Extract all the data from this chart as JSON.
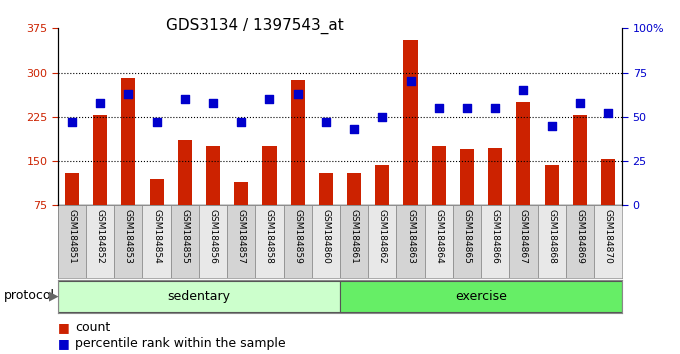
{
  "title": "GDS3134 / 1397543_at",
  "samples": [
    "GSM184851",
    "GSM184852",
    "GSM184853",
    "GSM184854",
    "GSM184855",
    "GSM184856",
    "GSM184857",
    "GSM184858",
    "GSM184859",
    "GSM184860",
    "GSM184861",
    "GSM184862",
    "GSM184863",
    "GSM184864",
    "GSM184865",
    "GSM184866",
    "GSM184867",
    "GSM184868",
    "GSM184869",
    "GSM184870"
  ],
  "bar_values": [
    130,
    228,
    290,
    120,
    185,
    175,
    115,
    175,
    288,
    130,
    130,
    143,
    355,
    175,
    170,
    173,
    250,
    143,
    228,
    153
  ],
  "pct_values": [
    47,
    58,
    63,
    47,
    60,
    58,
    47,
    60,
    63,
    47,
    43,
    50,
    70,
    55,
    55,
    55,
    65,
    45,
    58,
    52
  ],
  "groups": [
    {
      "label": "sedentary",
      "start": 0,
      "end": 10,
      "color": "#ccffcc"
    },
    {
      "label": "exercise",
      "start": 10,
      "end": 20,
      "color": "#66ee66"
    }
  ],
  "ylim_left": [
    75,
    375
  ],
  "ylim_right": [
    0,
    100
  ],
  "yticks_left": [
    75,
    150,
    225,
    300,
    375
  ],
  "yticks_right": [
    0,
    25,
    50,
    75,
    100
  ],
  "yticklabels_right": [
    "0",
    "25",
    "50",
    "75",
    "100%"
  ],
  "bar_color": "#cc2200",
  "pct_color": "#0000cc",
  "grid_color": "#000000",
  "bg_color": "#ffffff",
  "protocol_label": "protocol",
  "legend_count": "count",
  "legend_pct": "percentile rank within the sample",
  "title_fontsize": 11,
  "tick_fontsize": 8,
  "label_fontsize": 9,
  "sample_box_color_odd": "#d4d4d4",
  "sample_box_color_even": "#e8e8e8",
  "sample_box_border": "#888888"
}
